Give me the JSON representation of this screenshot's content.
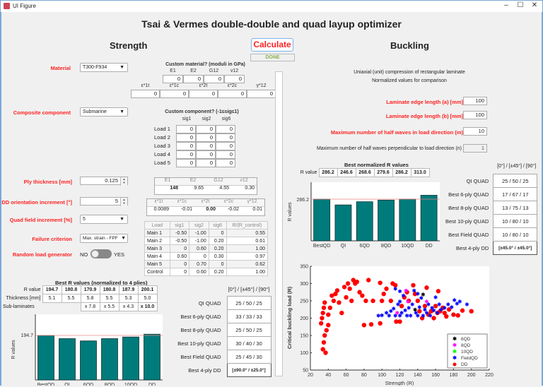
{
  "window": {
    "title": "UI Figure",
    "minimize": "–",
    "maximize": "☐",
    "close": "✕"
  },
  "header": {
    "title": "Tsai & Vermes double-double and quad layup optimizer"
  },
  "strength": {
    "title": "Strength",
    "material": {
      "label": "Material",
      "value": "T300-F934"
    },
    "custom_material": {
      "title": "Custom material? (moduli in GPa)",
      "moduli_headers": [
        "E1",
        "E2",
        "G12",
        "v12"
      ],
      "moduli_values": [
        "0",
        "0",
        "0",
        "0"
      ],
      "strain_headers": [
        "ε*1t",
        "ε*1c",
        "ε*2t",
        "ε*2c",
        "γ*12"
      ],
      "strain_values": [
        "0",
        "0",
        "0",
        "0",
        "0"
      ]
    },
    "component": {
      "label": "Composite component",
      "value": "Submarine"
    },
    "custom_component": {
      "title": "Custom component? (-1≤sig≤1)",
      "headers": [
        "sig1",
        "sig2",
        "sig6"
      ],
      "rows": [
        {
          "label": "Load 1",
          "values": [
            "0",
            "0",
            "0"
          ]
        },
        {
          "label": "Load 2",
          "values": [
            "0",
            "0",
            "0"
          ]
        },
        {
          "label": "Load 3",
          "values": [
            "0",
            "0",
            "0"
          ]
        },
        {
          "label": "Load 4",
          "values": [
            "0",
            "0",
            "0"
          ]
        },
        {
          "label": "Load 5",
          "values": [
            "0",
            "0",
            "0"
          ]
        }
      ]
    },
    "ply_thickness": {
      "label": "Ply thickness [mm]",
      "value": "0.125"
    },
    "dd_increment": {
      "label": "DD orientation increment [°]",
      "value": "5"
    },
    "quad_increment": {
      "label": "Quad field increment [%]",
      "value": "5"
    },
    "failure": {
      "label": "Failure criterion",
      "value": "Max. strain - FPF"
    },
    "random_load": {
      "label": "Random load generator",
      "off": "NO",
      "on": "YES"
    },
    "moduli_table": {
      "headers": [
        "E1",
        "E2",
        "G12",
        "v12"
      ],
      "values": [
        "148",
        "9.65",
        "4.55",
        "0.30"
      ]
    },
    "strain_table": {
      "headers": [
        "ε*1t",
        "ε*1c",
        "ε*2t",
        "ε*2c",
        "γ*12"
      ],
      "values": [
        "0.0089",
        "-0.01",
        "0.00",
        "-0.02",
        "0.01"
      ]
    },
    "load_table": {
      "headers": [
        "Load",
        "sig1",
        "sig2",
        "sig6",
        "R/(R_control)"
      ],
      "rows": [
        [
          "Main 1",
          "-0.50",
          "-1.00",
          "0",
          "0.55"
        ],
        [
          "Main 2",
          "-0.50",
          "-1.00",
          "0.20",
          "0.61"
        ],
        [
          "Main 3",
          "0",
          "0.60",
          "0.20",
          "1.00"
        ],
        [
          "Main 4",
          "0.60",
          "0",
          "0.30",
          "0.97"
        ],
        [
          "Main 5",
          "0",
          "0.70",
          "0",
          "0.62"
        ],
        [
          "Control",
          "0",
          "0.60",
          "0.20",
          "1.00"
        ]
      ]
    },
    "best_r": {
      "title": "Best R values (normalized to 4 plies)",
      "r_label": "R value",
      "r_values": [
        "194.7",
        "180.8",
        "170.9",
        "180.8",
        "187.9",
        "200.1"
      ],
      "thickness_label": "Thickness [mm]",
      "thickness_values": [
        "5.1",
        "5.5",
        "5.8",
        "5.5",
        "5.3",
        "5.0"
      ],
      "sub_label": "Sub-laminates",
      "sub_values": [
        "x 7.8",
        "x 5.5",
        "x 4.3",
        "x 10.0"
      ]
    },
    "layups": {
      "header": "[0°] / [±45°] / [90°]",
      "rows": [
        {
          "label": "QI QUAD",
          "value": "25  /  50  /  25"
        },
        {
          "label": "Best 6-ply QUAD",
          "value": "33  /  33  /  33"
        },
        {
          "label": "Best 8-ply QUAD",
          "value": "25  /  50  /  25"
        },
        {
          "label": "Best 10-ply QUAD",
          "value": "30  /  40  /  30"
        },
        {
          "label": "Best Field QUAD",
          "value": "25  /  45  /  30"
        },
        {
          "label": "Best 4-ply DD",
          "value": "[±90.0° / ±25.0°]"
        }
      ]
    }
  },
  "calculate": {
    "label": "Calculate",
    "status": "DONE"
  },
  "buckling": {
    "title": "Buckling",
    "desc1": "Uniaxial (unit) compression of rectangular laminate",
    "desc2": "Normalized values for comparison",
    "edge_a": {
      "label": "Laminate edge length (a) [mm]",
      "value": "100"
    },
    "edge_b": {
      "label": "Laminate edge length (b) [mm]",
      "value": "100"
    },
    "m_max": {
      "label": "Maximum number of half waves in load direction (m)",
      "value": "10"
    },
    "n_max": {
      "label": "Maximum number of half waves perpendicular to load direction (n)",
      "value": "1"
    },
    "best_r": {
      "title": "Best normalized R values",
      "r_label": "R value",
      "r_values": [
        "286.2",
        "246.6",
        "268.6",
        "279.6",
        "286.2",
        "313.0"
      ]
    },
    "layups": {
      "header": "[0°] / [±45°] / [90°]",
      "rows": [
        {
          "label": "QI QUAD",
          "value": "25  /  50  /  25"
        },
        {
          "label": "Best 6-ply QUAD",
          "value": "17  /  67  /  17"
        },
        {
          "label": "Best 8-ply QUAD",
          "value": "13  /  75  /  13"
        },
        {
          "label": "Best 10-ply QUAD",
          "value": "10  /  80  /  10"
        },
        {
          "label": "Best Field QUAD",
          "value": "10  /  80  /  10"
        },
        {
          "label": "Best 4-ply DD",
          "value": "[±45.0° / ±45.0°]"
        }
      ]
    }
  },
  "chart_data": [
    {
      "type": "bar",
      "title": "",
      "categories": [
        "BestQD",
        "QI",
        "6QD",
        "8QD",
        "10QD",
        "DD"
      ],
      "values": [
        194.7,
        180.8,
        170.9,
        180.8,
        187.9,
        200.1
      ],
      "ylabel": "R values",
      "reference_line": 194.7,
      "ytick": "194.7"
    },
    {
      "type": "bar",
      "title": "",
      "categories": [
        "BestQD",
        "QI",
        "6QD",
        "8QD",
        "10QD",
        "DD"
      ],
      "values": [
        286.2,
        246.6,
        268.6,
        279.6,
        286.2,
        313.0
      ],
      "ylabel": "R values",
      "reference_line": 286.2,
      "ytick": "286.2"
    },
    {
      "type": "scatter",
      "xlabel": "Strength (R)",
      "ylabel": "Critical buckling load (R)",
      "xlim": [
        20,
        220
      ],
      "ylim": [
        50,
        350
      ],
      "xticks": [
        "20",
        "40",
        "60",
        "80",
        "100",
        "120",
        "140",
        "160",
        "180",
        "200",
        "220"
      ],
      "yticks": [
        "50",
        "100",
        "150",
        "200",
        "250",
        "300",
        "350"
      ],
      "legend": [
        "6QD",
        "8QD",
        "10QD",
        "FieldQD",
        "DD"
      ],
      "legend_position": "lower right",
      "series": [
        {
          "name": "6QD",
          "color": "#000000",
          "points": [
            [
              137,
              225
            ],
            [
              146,
              268
            ]
          ]
        },
        {
          "name": "8QD",
          "color": "#ff00ff",
          "points": [
            [
              117,
              215
            ],
            [
              127,
              280
            ],
            [
              129,
              248
            ],
            [
              150,
              248
            ]
          ]
        },
        {
          "name": "10QD",
          "color": "#00ff00",
          "points": []
        },
        {
          "name": "FieldQD",
          "color": "#0000ff",
          "points": [
            [
              96,
              207
            ],
            [
              100,
              208
            ],
            [
              105,
              215
            ],
            [
              108,
              207
            ],
            [
              110,
              220
            ],
            [
              113,
              228
            ],
            [
              115,
              207
            ],
            [
              118,
              240
            ],
            [
              120,
              207
            ],
            [
              120,
              248
            ],
            [
              122,
              215
            ],
            [
              124,
              265
            ],
            [
              126,
              222
            ],
            [
              128,
              207
            ],
            [
              130,
              230
            ],
            [
              132,
              207
            ],
            [
              134,
              240
            ],
            [
              136,
              280
            ],
            [
              138,
              215
            ],
            [
              140,
              207
            ],
            [
              140,
              270
            ],
            [
              142,
              232
            ],
            [
              144,
              258
            ],
            [
              146,
              207
            ],
            [
              148,
              225
            ],
            [
              150,
              215
            ],
            [
              152,
              240
            ],
            [
              154,
              207
            ],
            [
              156,
              230
            ],
            [
              158,
              222
            ],
            [
              160,
              260
            ],
            [
              162,
              215
            ],
            [
              164,
              240
            ],
            [
              166,
              225
            ],
            [
              170,
              230
            ],
            [
              174,
              240
            ],
            [
              178,
              232
            ],
            [
              181,
              252
            ],
            [
              184,
              242
            ],
            [
              187,
              248
            ],
            [
              195,
              240
            ],
            [
              115,
              285
            ],
            [
              120,
              278
            ]
          ]
        },
        {
          "name": "DD",
          "color": "#ff0000",
          "points": [
            [
              32,
              185
            ],
            [
              33,
              200
            ],
            [
              34,
              215
            ],
            [
              35,
              230
            ],
            [
              36,
              245
            ],
            [
              37,
              100
            ],
            [
              34,
              110
            ],
            [
              35,
              130
            ],
            [
              36,
              150
            ],
            [
              38,
              165
            ],
            [
              40,
              180
            ],
            [
              40,
              210
            ],
            [
              42,
              230
            ],
            [
              44,
              265
            ],
            [
              46,
              250
            ],
            [
              48,
              270
            ],
            [
              50,
              280
            ],
            [
              52,
              245
            ],
            [
              55,
              215
            ],
            [
              58,
              290
            ],
            [
              60,
              260
            ],
            [
              62,
              300
            ],
            [
              64,
              285
            ],
            [
              66,
              250
            ],
            [
              68,
              310
            ],
            [
              70,
              300
            ],
            [
              72,
              305
            ],
            [
              75,
              275
            ],
            [
              78,
              265
            ],
            [
              80,
              180
            ],
            [
              82,
              250
            ],
            [
              85,
              310
            ],
            [
              88,
              182
            ],
            [
              90,
              250
            ],
            [
              98,
              185
            ],
            [
              98,
              302
            ],
            [
              100,
              250
            ],
            [
              102,
              270
            ],
            [
              105,
              285
            ],
            [
              110,
              250
            ],
            [
              112,
              300
            ],
            [
              115,
              295
            ],
            [
              116,
              190
            ],
            [
              120,
              190
            ],
            [
              122,
              235
            ],
            [
              125,
              260
            ],
            [
              128,
              275
            ],
            [
              130,
              250
            ],
            [
              135,
              295
            ],
            [
              137,
              270
            ],
            [
              140,
              250
            ],
            [
              142,
              220
            ],
            [
              145,
              200
            ],
            [
              148,
              235
            ],
            [
              150,
              288
            ],
            [
              152,
              210
            ],
            [
              155,
              220
            ],
            [
              158,
              200
            ],
            [
              160,
              235
            ],
            [
              162,
              215
            ],
            [
              163,
              278
            ],
            [
              165,
              220
            ],
            [
              168,
              230
            ],
            [
              170,
              215
            ],
            [
              172,
              205
            ],
            [
              175,
              225
            ],
            [
              180,
              210
            ],
            [
              185,
              208
            ],
            [
              190,
              222
            ],
            [
              200,
              220
            ]
          ]
        }
      ]
    }
  ]
}
